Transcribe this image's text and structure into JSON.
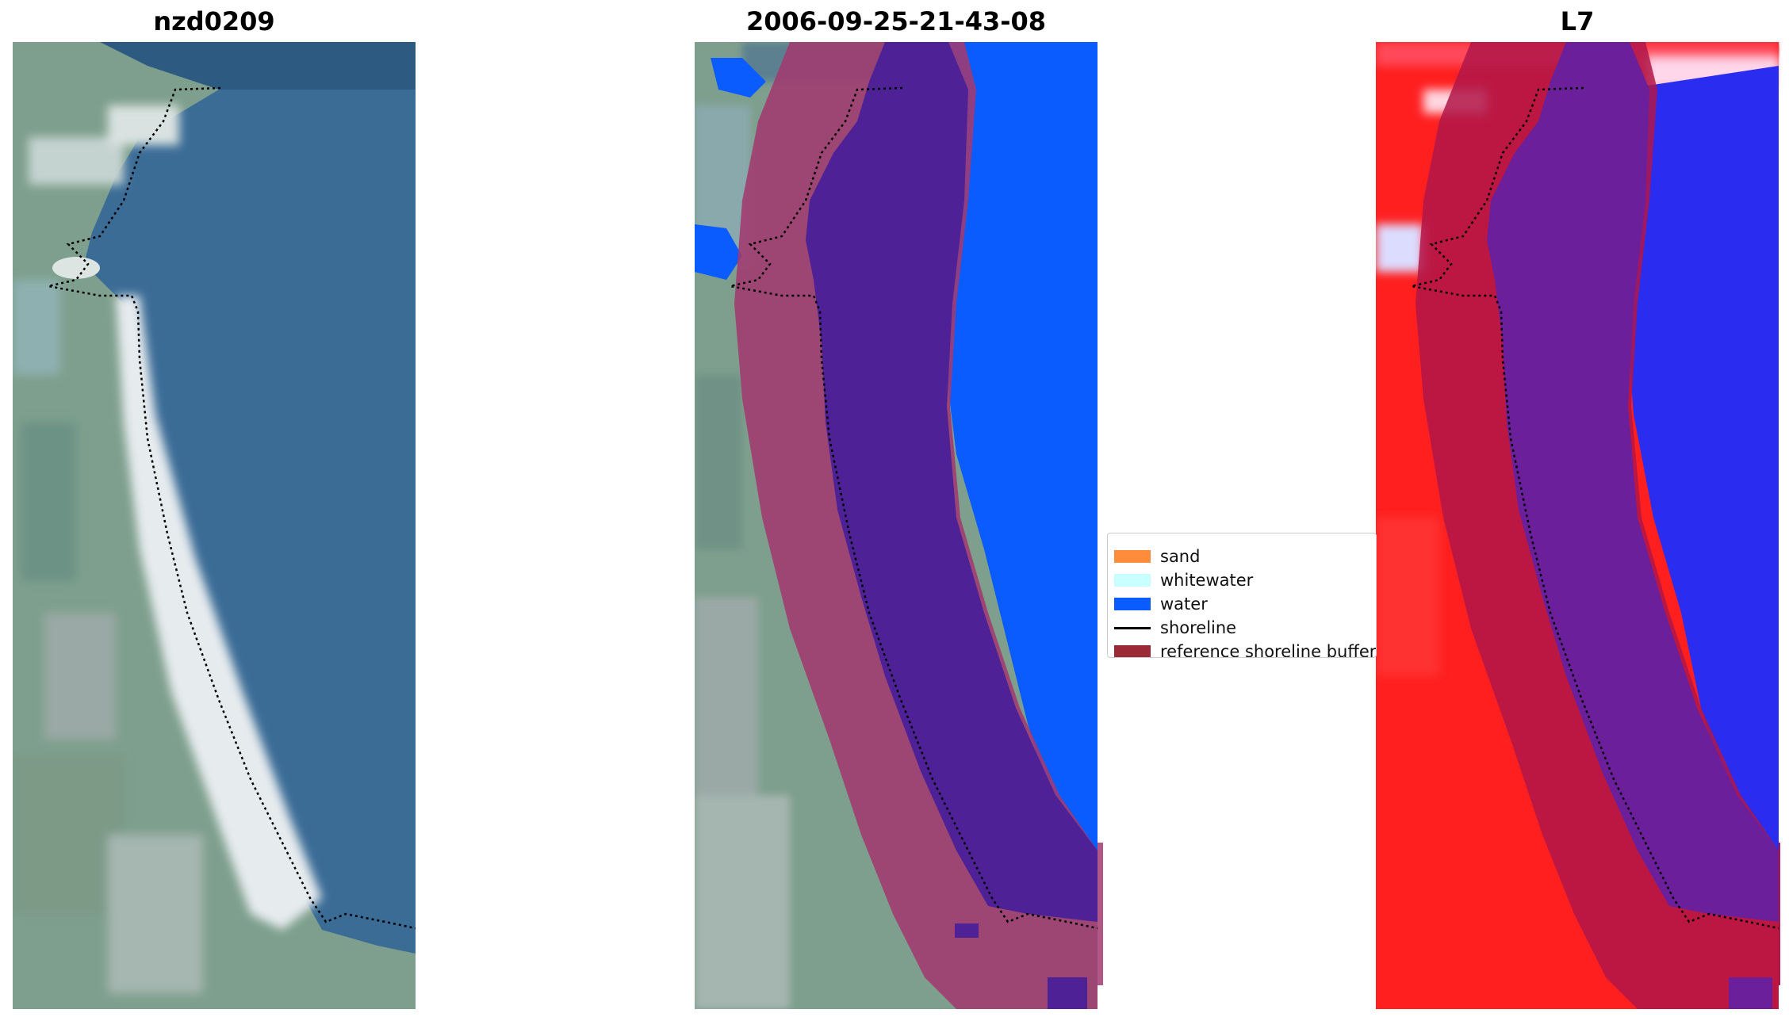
{
  "panels": {
    "left_title": "nzd0209",
    "middle_title": "2006-09-25-21-43-08",
    "right_title": "L7"
  },
  "legend": {
    "items": [
      {
        "label": "sand",
        "kind": "patch",
        "color": "#ff8c3a"
      },
      {
        "label": "whitewater",
        "kind": "patch",
        "color": "#c8ffff"
      },
      {
        "label": "water",
        "kind": "patch",
        "color": "#0a5cff"
      },
      {
        "label": "shoreline",
        "kind": "line",
        "color": "#000000"
      },
      {
        "label": "reference shoreline buffer",
        "kind": "patch",
        "color": "#9a2a35"
      }
    ]
  },
  "colors": {
    "sea_rgb": "#3a6a93",
    "land_rgb": "#7fa08e",
    "sand_rgb": "#e8ecef",
    "buffer_overlay": "#a23a70",
    "water_class": "#0a5cff",
    "water_in_buffer": "#4e2296",
    "index_red": "#ff1a1a",
    "index_blue": "#2a2cf0",
    "index_buffer": "#b0164a",
    "index_purple": "#6b1f9a"
  }
}
